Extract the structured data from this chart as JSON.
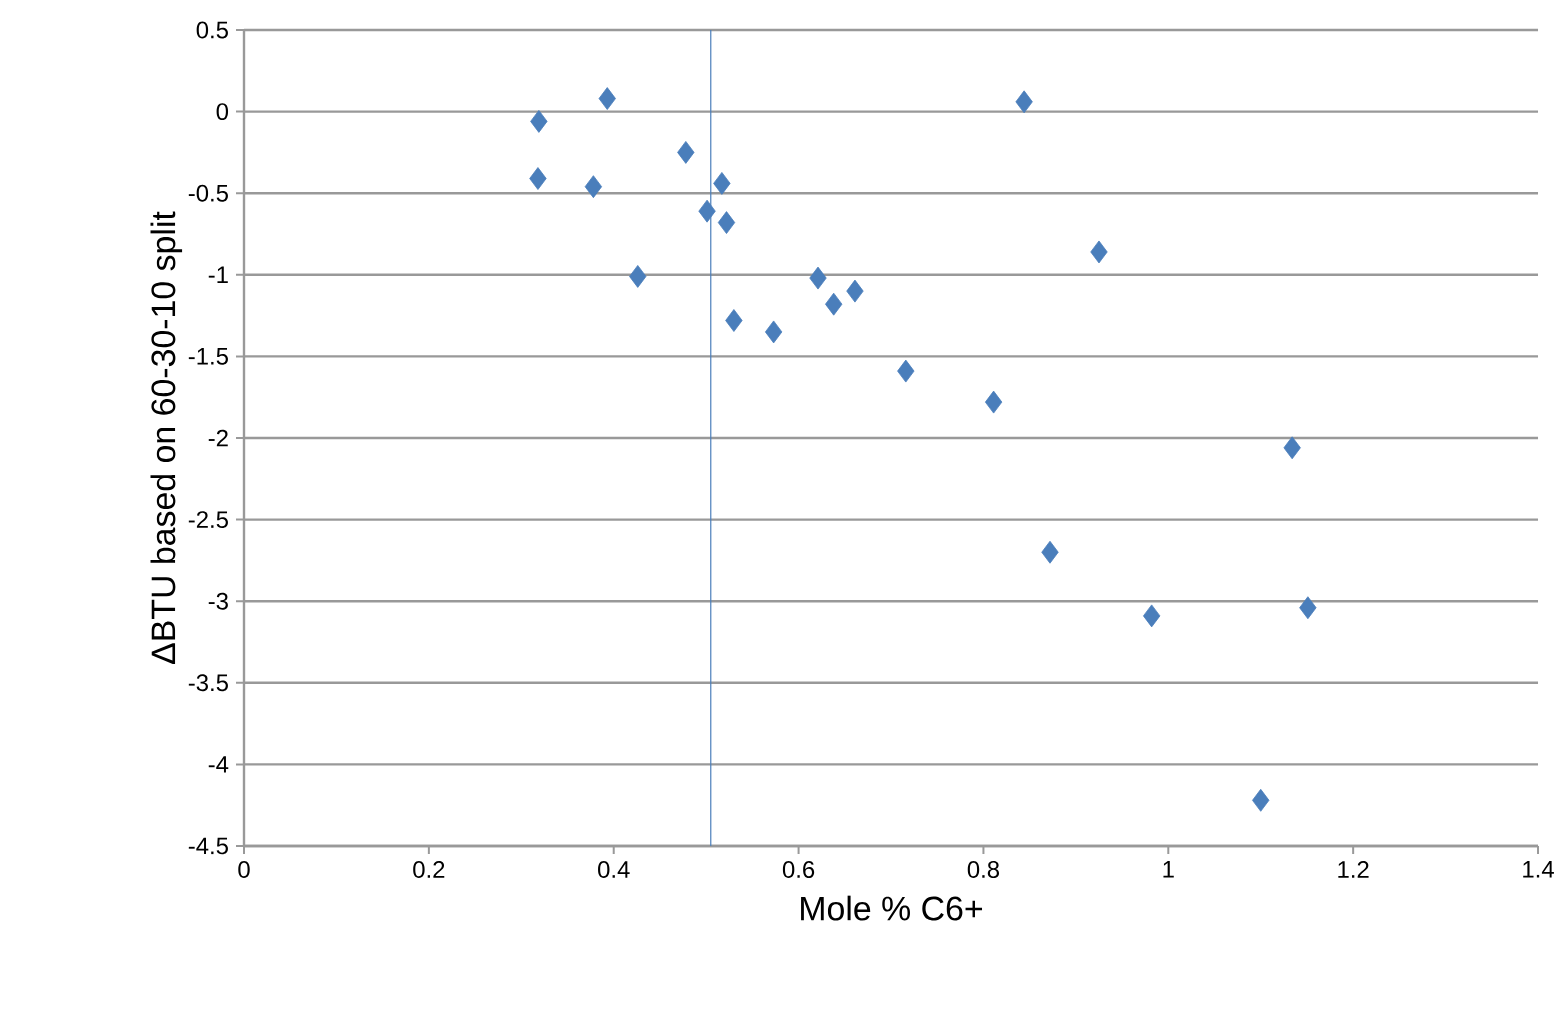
{
  "chart_data": {
    "type": "scatter",
    "xlabel": "Mole % C6+",
    "ylabel": "ΔBTU based on 60-30-10 split",
    "x": [
      0.319,
      0.393,
      0.318,
      0.378,
      0.478,
      0.517,
      0.501,
      0.522,
      0.426,
      0.621,
      0.638,
      0.661,
      0.53,
      0.573,
      0.844,
      0.925,
      0.716,
      0.811,
      1.134,
      0.872,
      0.982,
      1.151,
      1.1
    ],
    "values": [
      -0.06,
      0.08,
      -0.41,
      -0.46,
      -0.25,
      -0.44,
      -0.61,
      -0.68,
      -1.01,
      -1.02,
      -1.18,
      -1.1,
      -1.28,
      -1.35,
      0.06,
      -0.86,
      -1.59,
      -1.78,
      -2.06,
      -2.7,
      -3.09,
      -3.04,
      -4.22
    ],
    "color": "#4a7ebb",
    "marker": "diamond",
    "grid": "y",
    "xlim": [
      0,
      1.4
    ],
    "xticks": [
      0,
      0.2,
      0.4,
      0.6,
      0.8,
      1,
      1.2,
      1.4
    ],
    "ylim": [
      -4.5,
      0.5
    ],
    "yticks": [
      0.5,
      0,
      -0.5,
      -1,
      -1.5,
      -2,
      -2.5,
      -3,
      -3.5,
      -4,
      -4.5
    ],
    "ref_lines": [
      {
        "axis": "x",
        "value": 0.505,
        "color": "#4a7ebb"
      }
    ]
  }
}
